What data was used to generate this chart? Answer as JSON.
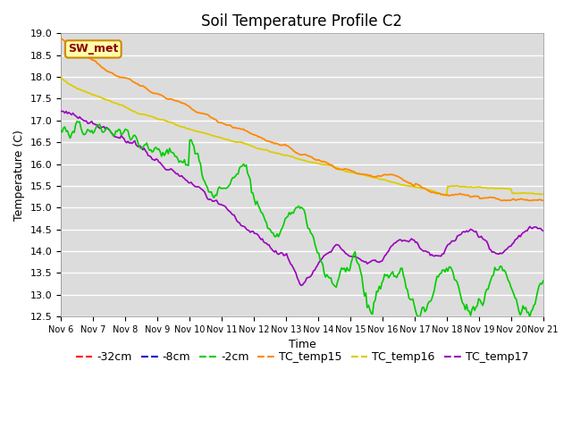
{
  "title": "Soil Temperature Profile C2",
  "xlabel": "Time",
  "ylabel": "Temperature (C)",
  "ylim": [
    12.5,
    19.0
  ],
  "bg_color": "#dcdcdc",
  "series_colors": {
    "m32cm": "#ff0000",
    "m8cm": "#0000cc",
    "m2cm": "#00cc00",
    "TC_temp15": "#ff8800",
    "TC_temp16": "#ddcc00",
    "TC_temp17": "#9900bb"
  },
  "legend_labels": [
    "-32cm",
    "-8cm",
    "-2cm",
    "TC_temp15",
    "TC_temp16",
    "TC_temp17"
  ],
  "sw_met_label": "SW_met",
  "title_fontsize": 12,
  "axis_fontsize": 9,
  "legend_fontsize": 9,
  "xtick_labels": [
    "Nov 6",
    "Nov 7",
    "Nov 8",
    "Nov 9",
    "Nov 10",
    "Nov 11",
    "Nov 12",
    "Nov 13",
    "Nov 14",
    "Nov 15",
    "Nov 16",
    "Nov 17",
    "Nov 18",
    "Nov 19",
    "Nov 20",
    "Nov 21"
  ],
  "yticks": [
    12.5,
    13.0,
    13.5,
    14.0,
    14.5,
    15.0,
    15.5,
    16.0,
    16.5,
    17.0,
    17.5,
    18.0,
    18.5,
    19.0
  ]
}
